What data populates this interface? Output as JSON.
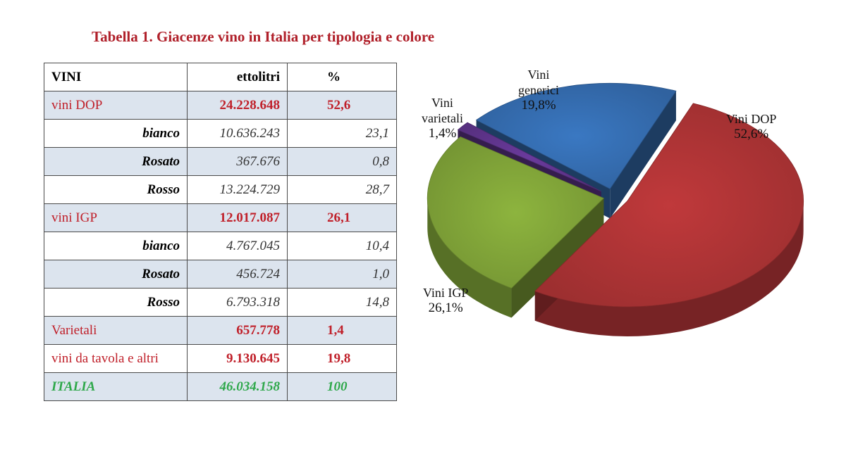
{
  "title": "Tabella 1. Giacenze vino in Italia per tipologia e colore",
  "table": {
    "headers": [
      "VINI",
      "ettolitri",
      "%"
    ],
    "rows": [
      {
        "label": "vini DOP",
        "hl": "24.228.648",
        "pct": "52,6",
        "kind": "main"
      },
      {
        "label": "bianco",
        "hl": "10.636.243",
        "pct": "23,1",
        "kind": "sub"
      },
      {
        "label": "Rosato",
        "hl": "367.676",
        "pct": "0,8",
        "kind": "sub"
      },
      {
        "label": "Rosso",
        "hl": "13.224.729",
        "pct": "28,7",
        "kind": "sub"
      },
      {
        "label": "vini IGP",
        "hl": "12.017.087",
        "pct": "26,1",
        "kind": "main"
      },
      {
        "label": "bianco",
        "hl": "4.767.045",
        "pct": "10,4",
        "kind": "sub"
      },
      {
        "label": "Rosato",
        "hl": "456.724",
        "pct": "1,0",
        "kind": "sub"
      },
      {
        "label": "Rosso",
        "hl": "6.793.318",
        "pct": "14,8",
        "kind": "sub"
      },
      {
        "label": "Varietali",
        "hl": "657.778",
        "pct": "1,4",
        "kind": "main"
      },
      {
        "label": "vini da tavola e altri",
        "hl": "9.130.645",
        "pct": "19,8",
        "kind": "main"
      },
      {
        "label": "ITALIA",
        "hl": "46.034.158",
        "pct": "100",
        "kind": "total"
      }
    ]
  },
  "chart_data": {
    "type": "pie",
    "style": "3d-exploded",
    "slices": [
      {
        "label_lines": [
          "Vini DOP"
        ],
        "value_label": "52,6%",
        "value": 52.6,
        "color": "#c0393b"
      },
      {
        "label_lines": [
          "Vini IGP"
        ],
        "value_label": "26,1%",
        "value": 26.1,
        "color": "#8db43e"
      },
      {
        "label_lines": [
          "Vini",
          "varietali"
        ],
        "value_label": "1,4%",
        "value": 1.4,
        "color": "#6a3a9c"
      },
      {
        "label_lines": [
          "Vini",
          "generici"
        ],
        "value_label": "19,8%",
        "value": 19.8,
        "color": "#3a78c2"
      }
    ]
  }
}
